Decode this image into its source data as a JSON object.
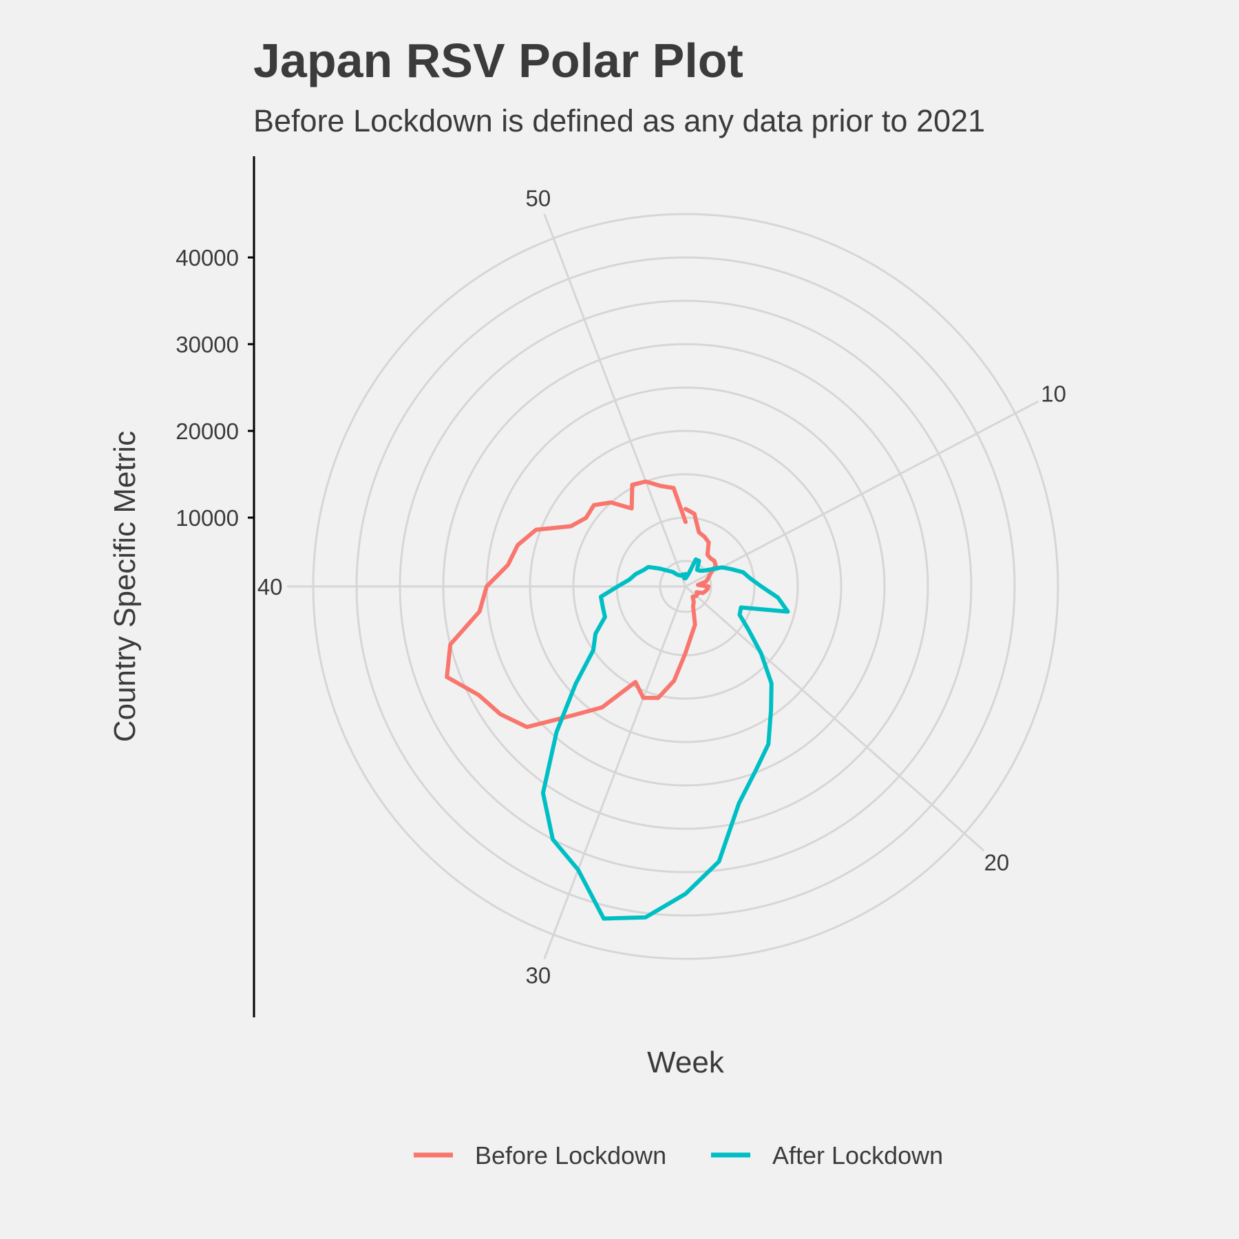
{
  "chart_data": {
    "type": "line",
    "coordinate_system": "polar",
    "title": "Japan RSV Polar Plot",
    "subtitle": "Before Lockdown is defined as any data prior to 2021",
    "xlabel": "Week",
    "ylabel": "Country Specific Metric",
    "theta_range": [
      1,
      53
    ],
    "r_range": [
      3000,
      48000
    ],
    "angular_ticks": [
      10,
      20,
      30,
      40,
      50
    ],
    "radial_ticks": [
      10000,
      20000,
      30000,
      40000
    ],
    "grid": true,
    "legend_position": "bottom",
    "series": [
      {
        "name": "Before Lockdown",
        "color": "#F8766D",
        "points": [
          [
            1,
            11000
          ],
          [
            2,
            10500
          ],
          [
            3,
            8500
          ],
          [
            4,
            8200
          ],
          [
            5,
            7800
          ],
          [
            6,
            6500
          ],
          [
            7,
            6400
          ],
          [
            8,
            6500
          ],
          [
            9,
            6300
          ],
          [
            10,
            5300
          ],
          [
            11,
            4900
          ],
          [
            12,
            4500
          ],
          [
            13,
            3500
          ],
          [
            14,
            4700
          ],
          [
            15,
            4600
          ],
          [
            16,
            4400
          ],
          [
            17,
            4200
          ],
          [
            18,
            3500
          ],
          [
            19,
            3700
          ],
          [
            20,
            3700
          ],
          [
            21,
            3600
          ],
          [
            22,
            3500
          ],
          [
            23,
            4100
          ],
          [
            24,
            4500
          ],
          [
            25,
            6600
          ],
          [
            26,
            7700
          ],
          [
            27,
            9700
          ],
          [
            28,
            13000
          ],
          [
            29,
            15300
          ],
          [
            30,
            15800
          ],
          [
            31,
            14500
          ],
          [
            32,
            19000
          ],
          [
            33,
            22000
          ],
          [
            34,
            26500
          ],
          [
            35,
            28000
          ],
          [
            36,
            29000
          ],
          [
            37,
            31500
          ],
          [
            38,
            30000
          ],
          [
            39,
            26000
          ],
          [
            40,
            25000
          ],
          [
            41,
            22700
          ],
          [
            42,
            22000
          ],
          [
            43,
            20500
          ],
          [
            44,
            17000
          ],
          [
            45,
            16000
          ],
          [
            46,
            16200
          ],
          [
            47,
            15000
          ],
          [
            48,
            13000
          ],
          [
            49,
            15300
          ],
          [
            50,
            15000
          ],
          [
            51,
            14000
          ],
          [
            52,
            13500
          ],
          [
            53,
            9500
          ]
        ]
      },
      {
        "name": "After Lockdown",
        "color": "#00BFC4",
        "points": [
          [
            1,
            3000
          ],
          [
            2,
            3200
          ],
          [
            3,
            3600
          ],
          [
            4,
            5400
          ],
          [
            5,
            5400
          ],
          [
            6,
            4400
          ],
          [
            7,
            4500
          ],
          [
            8,
            4800
          ],
          [
            9,
            5500
          ],
          [
            10,
            6800
          ],
          [
            11,
            7700
          ],
          [
            12,
            8900
          ],
          [
            13,
            9600
          ],
          [
            14,
            10800
          ],
          [
            15,
            12800
          ],
          [
            16,
            14200
          ],
          [
            17,
            8900
          ],
          [
            18,
            9100
          ],
          [
            19,
            10900
          ],
          [
            20,
            13700
          ],
          [
            21,
            17000
          ],
          [
            22,
            19400
          ],
          [
            23,
            22600
          ],
          [
            24,
            24800
          ],
          [
            25,
            27800
          ],
          [
            26,
            34000
          ],
          [
            27,
            37500
          ],
          [
            28,
            40500
          ],
          [
            29,
            41500
          ],
          [
            30,
            37000
          ],
          [
            31,
            35000
          ],
          [
            32,
            31000
          ],
          [
            33,
            24500
          ],
          [
            34,
            19000
          ],
          [
            35,
            15000
          ],
          [
            36,
            13800
          ],
          [
            37,
            12000
          ],
          [
            38,
            11900
          ],
          [
            39,
            11900
          ],
          [
            40,
            9900
          ],
          [
            41,
            8600
          ],
          [
            42,
            8000
          ],
          [
            43,
            7300
          ],
          [
            44,
            6900
          ],
          [
            45,
            5700
          ],
          [
            46,
            4800
          ],
          [
            47,
            4300
          ],
          [
            48,
            3700
          ],
          [
            49,
            3500
          ],
          [
            50,
            3400
          ],
          [
            51,
            3500
          ],
          [
            52,
            3000
          ],
          [
            53,
            3500
          ]
        ]
      }
    ]
  }
}
